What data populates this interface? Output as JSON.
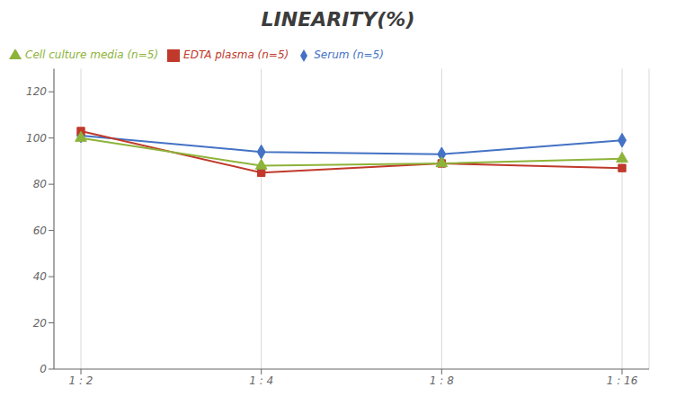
{
  "chart_data": {
    "type": "line",
    "title": "LINEARITY(%)",
    "categories": [
      "1 : 2",
      "1 : 4",
      "1 : 8",
      "1 : 16"
    ],
    "series": [
      {
        "name": "Serum (n=5)",
        "color": "#4472C4",
        "marker": "diamond",
        "values": [
          101,
          94,
          93,
          99
        ]
      },
      {
        "name": "EDTA plasma (n=5)",
        "color": "#C0392B",
        "marker": "square",
        "values": [
          103,
          85,
          89,
          87
        ]
      },
      {
        "name": "Cell culture media (n=5)",
        "color": "#8DB33A",
        "marker": "triangle",
        "values": [
          100,
          88,
          89,
          91
        ]
      }
    ],
    "ylim": [
      0,
      130
    ],
    "yticks": [
      0,
      20,
      40,
      60,
      80,
      100,
      120
    ],
    "grid": "x",
    "legend": "top-left"
  }
}
